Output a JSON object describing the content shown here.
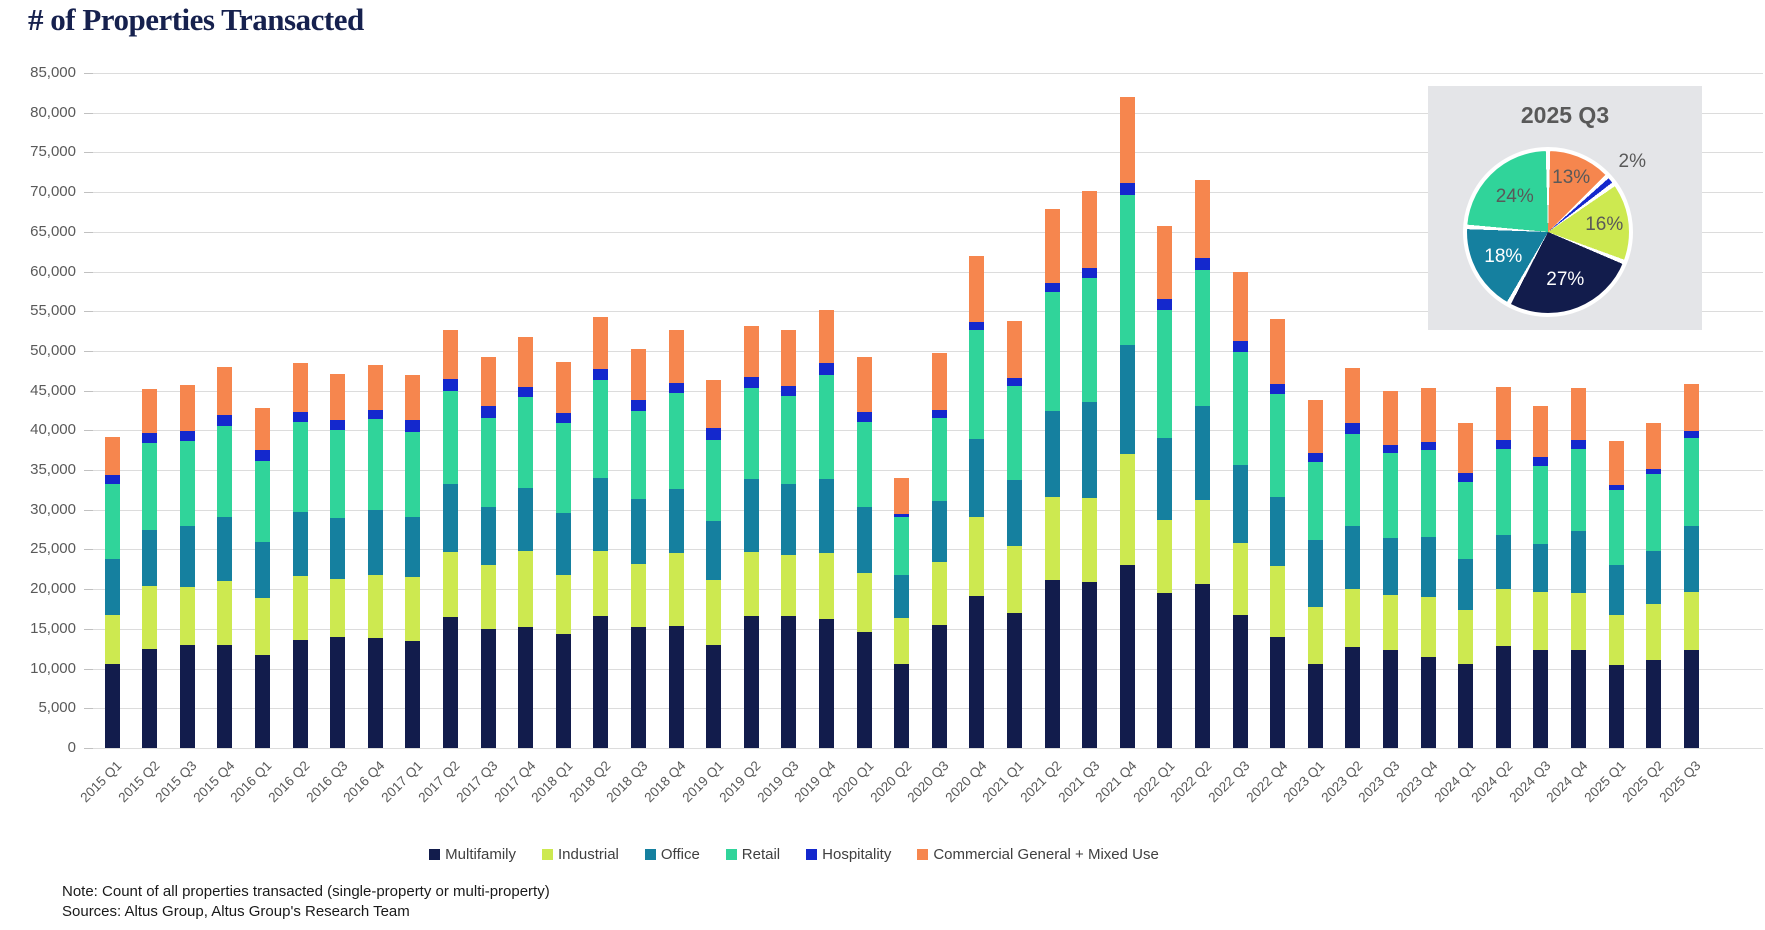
{
  "title": "# of Properties Transacted",
  "notes": {
    "note": "Note: Count of all properties transacted (single-property or multi-property)",
    "sources": "Sources: Altus Group, Altus Group's Research Team"
  },
  "y_axis": {
    "ticks": [
      "85,000",
      "80,000",
      "75,000",
      "70,000",
      "65,000",
      "60,000",
      "55,000",
      "50,000",
      "45,000",
      "40,000",
      "35,000",
      "30,000",
      "25,000",
      "20,000",
      "15,000",
      "10,000",
      "5,000",
      "0"
    ],
    "max": 85000
  },
  "chart_data": {
    "type": "bar",
    "stacked": true,
    "grid": true,
    "ylim": [
      0,
      85000
    ],
    "ylabel": "",
    "xlabel": "",
    "legend_position": "bottom",
    "categories": [
      "2015 Q1",
      "2015 Q2",
      "2015 Q3",
      "2015 Q4",
      "2016 Q1",
      "2016 Q2",
      "2016 Q3",
      "2016 Q4",
      "2017 Q1",
      "2017 Q2",
      "2017 Q3",
      "2017 Q4",
      "2018 Q1",
      "2018 Q2",
      "2018 Q3",
      "2018 Q4",
      "2019 Q1",
      "2019 Q2",
      "2019 Q3",
      "2019 Q4",
      "2020 Q1",
      "2020 Q2",
      "2020 Q3",
      "2020 Q4",
      "2021 Q1",
      "2021 Q2",
      "2021 Q3",
      "2021 Q4",
      "2022 Q1",
      "2022 Q2",
      "2022 Q3",
      "2022 Q4",
      "2023 Q1",
      "2023 Q2",
      "2023 Q3",
      "2023 Q4",
      "2024 Q1",
      "2024 Q2",
      "2024 Q3",
      "2024 Q4",
      "2025 Q1",
      "2025 Q2",
      "2025 Q3"
    ],
    "series": [
      {
        "name": "Multifamily",
        "color": "#121c4c",
        "values": [
          10600,
          12500,
          13000,
          13000,
          11700,
          13600,
          14000,
          13900,
          13500,
          16500,
          15000,
          15300,
          14300,
          16600,
          15200,
          15400,
          13000,
          16600,
          16600,
          16300,
          14600,
          10600,
          15500,
          19100,
          17000,
          21200,
          20900,
          23000,
          19500,
          20600,
          16800,
          14000,
          10600,
          12700,
          12400,
          11500,
          10600,
          12900,
          12300,
          12400,
          10400,
          11100,
          12400
        ]
      },
      {
        "name": "Industrial",
        "color": "#cde950",
        "values": [
          6200,
          7900,
          7300,
          8000,
          7200,
          8100,
          7300,
          7900,
          8000,
          8200,
          8100,
          9500,
          7500,
          8200,
          8000,
          9100,
          8100,
          8100,
          7700,
          8300,
          7500,
          5800,
          7900,
          10000,
          8500,
          10400,
          10600,
          14000,
          9200,
          10600,
          9000,
          8900,
          7200,
          7300,
          6900,
          7500,
          6800,
          7100,
          7300,
          7100,
          6300,
          7000,
          7300
        ]
      },
      {
        "name": "Office",
        "color": "#15809f",
        "values": [
          7000,
          7000,
          7600,
          8100,
          7100,
          8000,
          7700,
          8200,
          7600,
          8500,
          7300,
          7900,
          7800,
          9200,
          8100,
          8100,
          7500,
          9200,
          8900,
          9300,
          8300,
          5400,
          7700,
          9800,
          8200,
          10800,
          12100,
          13700,
          10300,
          11900,
          9800,
          8700,
          8400,
          7900,
          7100,
          7600,
          6400,
          6800,
          6100,
          7800,
          6300,
          6700,
          8300
        ]
      },
      {
        "name": "Retail",
        "color": "#30d49a",
        "values": [
          9500,
          11000,
          10800,
          11500,
          10200,
          11300,
          11100,
          11400,
          10700,
          11800,
          11200,
          11500,
          11300,
          12300,
          11100,
          12100,
          10200,
          11500,
          11100,
          13100,
          10600,
          7300,
          10400,
          13700,
          11900,
          15000,
          15600,
          18900,
          16100,
          17100,
          14300,
          13000,
          9800,
          11600,
          10700,
          10900,
          9700,
          10800,
          9800,
          10400,
          9500,
          9700,
          11000
        ]
      },
      {
        "name": "Hospitality",
        "color": "#1428cd",
        "values": [
          1100,
          1300,
          1200,
          1300,
          1300,
          1300,
          1200,
          1200,
          1500,
          1500,
          1500,
          1300,
          1300,
          1400,
          1400,
          1300,
          1500,
          1300,
          1300,
          1500,
          1300,
          400,
          1100,
          1000,
          1000,
          1200,
          1200,
          1500,
          1400,
          1500,
          1300,
          1300,
          1200,
          1400,
          1100,
          1000,
          1100,
          1200,
          1200,
          1100,
          600,
          600,
          900
        ]
      },
      {
        "name": "Commercial General + Mixed Use",
        "color": "#f6864e",
        "values": [
          4800,
          5500,
          5800,
          6100,
          5300,
          6200,
          5800,
          5600,
          5700,
          6100,
          6100,
          6200,
          6400,
          6600,
          6400,
          6600,
          6100,
          6500,
          7000,
          6700,
          6900,
          4500,
          7100,
          8400,
          7200,
          9300,
          9800,
          10900,
          9300,
          9800,
          8800,
          8100,
          6600,
          6900,
          6800,
          6800,
          6300,
          6700,
          6400,
          6600,
          5600,
          5800,
          6000
        ]
      }
    ]
  },
  "pie_inset": {
    "title": "2025 Q3",
    "slices": [
      {
        "label": "13%",
        "value": 13,
        "color": "#f6864e",
        "text_color": "#595959",
        "outside": false
      },
      {
        "label": "2%",
        "value": 2,
        "color": "#1428cd",
        "text_color": "#595959",
        "outside": true
      },
      {
        "label": "16%",
        "value": 16,
        "color": "#cde950",
        "text_color": "#595959",
        "outside": false
      },
      {
        "label": "27%",
        "value": 27,
        "color": "#121c4c",
        "text_color": "#ffffff",
        "outside": false
      },
      {
        "label": "18%",
        "value": 18,
        "color": "#15809f",
        "text_color": "#ffffff",
        "outside": false
      },
      {
        "label": "24%",
        "value": 24,
        "color": "#30d49a",
        "text_color": "#595959",
        "outside": false
      }
    ]
  }
}
